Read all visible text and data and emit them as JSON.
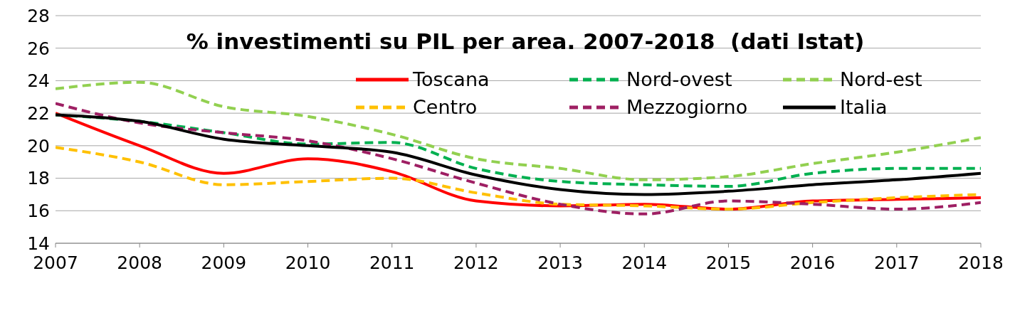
{
  "chart_data": {
    "type": "line",
    "title": "% investimenti su PIL per area. 2007-2018  (dati Istat)",
    "x": [
      2007,
      2008,
      2009,
      2010,
      2011,
      2012,
      2013,
      2014,
      2015,
      2016,
      2017,
      2018
    ],
    "series": [
      {
        "name": "Toscana",
        "color": "#ff0000",
        "line_style": "solid",
        "values": [
          22.0,
          20.0,
          18.3,
          19.2,
          18.4,
          16.6,
          16.3,
          16.4,
          16.1,
          16.6,
          16.7,
          16.8
        ]
      },
      {
        "name": "Nord-ovest",
        "color": "#00b050",
        "line_style": "dashed",
        "values": [
          21.9,
          21.5,
          20.8,
          20.1,
          20.2,
          18.6,
          17.8,
          17.6,
          17.5,
          18.3,
          18.6,
          18.6
        ]
      },
      {
        "name": "Nord-est",
        "color": "#92d050",
        "line_style": "dashed",
        "values": [
          23.5,
          23.9,
          22.4,
          21.8,
          20.7,
          19.2,
          18.6,
          17.9,
          18.1,
          18.9,
          19.6,
          20.5
        ]
      },
      {
        "name": "Centro",
        "color": "#ffc000",
        "line_style": "dashed",
        "values": [
          19.9,
          19.0,
          17.6,
          17.8,
          18.0,
          17.1,
          16.4,
          16.3,
          16.1,
          16.5,
          16.8,
          17.0
        ]
      },
      {
        "name": "Mezzogiorno",
        "color": "#9e1f63",
        "line_style": "dashed",
        "values": [
          22.6,
          21.4,
          20.8,
          20.3,
          19.2,
          17.7,
          16.4,
          15.8,
          16.6,
          16.4,
          16.1,
          16.5
        ]
      },
      {
        "name": "Italia",
        "color": "#000000",
        "line_style": "solid",
        "values": [
          21.9,
          21.5,
          20.4,
          20.0,
          19.6,
          18.2,
          17.3,
          17.0,
          17.2,
          17.6,
          17.9,
          18.3
        ]
      }
    ],
    "xlim": [
      2007,
      2018
    ],
    "xticks": [
      2007,
      2008,
      2009,
      2010,
      2011,
      2012,
      2013,
      2014,
      2015,
      2016,
      2017,
      2018
    ],
    "ylim": [
      14,
      28
    ],
    "yticks": [
      14,
      16,
      18,
      20,
      22,
      24,
      26,
      28
    ],
    "grid": "y",
    "legend": "top right",
    "marker": "none"
  }
}
